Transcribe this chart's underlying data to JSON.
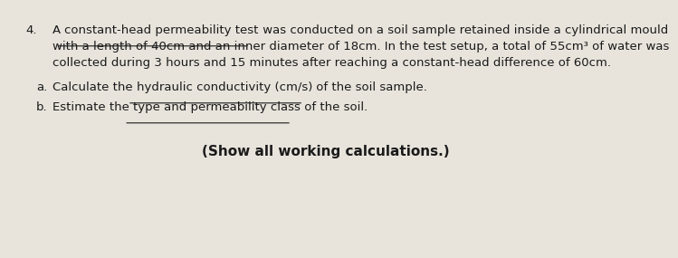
{
  "background_color": "#e8e4dc",
  "question_number": "4.",
  "line1_a": "A ",
  "line1_ul": "constant-head permeability test",
  "line1_b": " was conducted on a soil sample retained inside a cylindrical mould",
  "line2": "with a length of 40cm and an inner diameter of 18cm. In the test setup, a total of 55cm³ of water was",
  "line3": "collected during 3 hours and 15 minutes after reaching a constant-head difference of 60cm.",
  "part_a_label": "a.",
  "part_a_normal1": "Calculate the ",
  "part_a_underline": "hydraulic conductivity (cm/s)",
  "part_a_normal2": " of the soil sample.",
  "part_b_label": "b.",
  "part_b_normal1": "Estimate the ",
  "part_b_underline": "type and permeability class",
  "part_b_normal2": " of the soil.",
  "footer": "(Show all working calculations.)",
  "font_size_main": 9.5,
  "font_size_footer": 11.0,
  "text_color": "#1a1a1a"
}
